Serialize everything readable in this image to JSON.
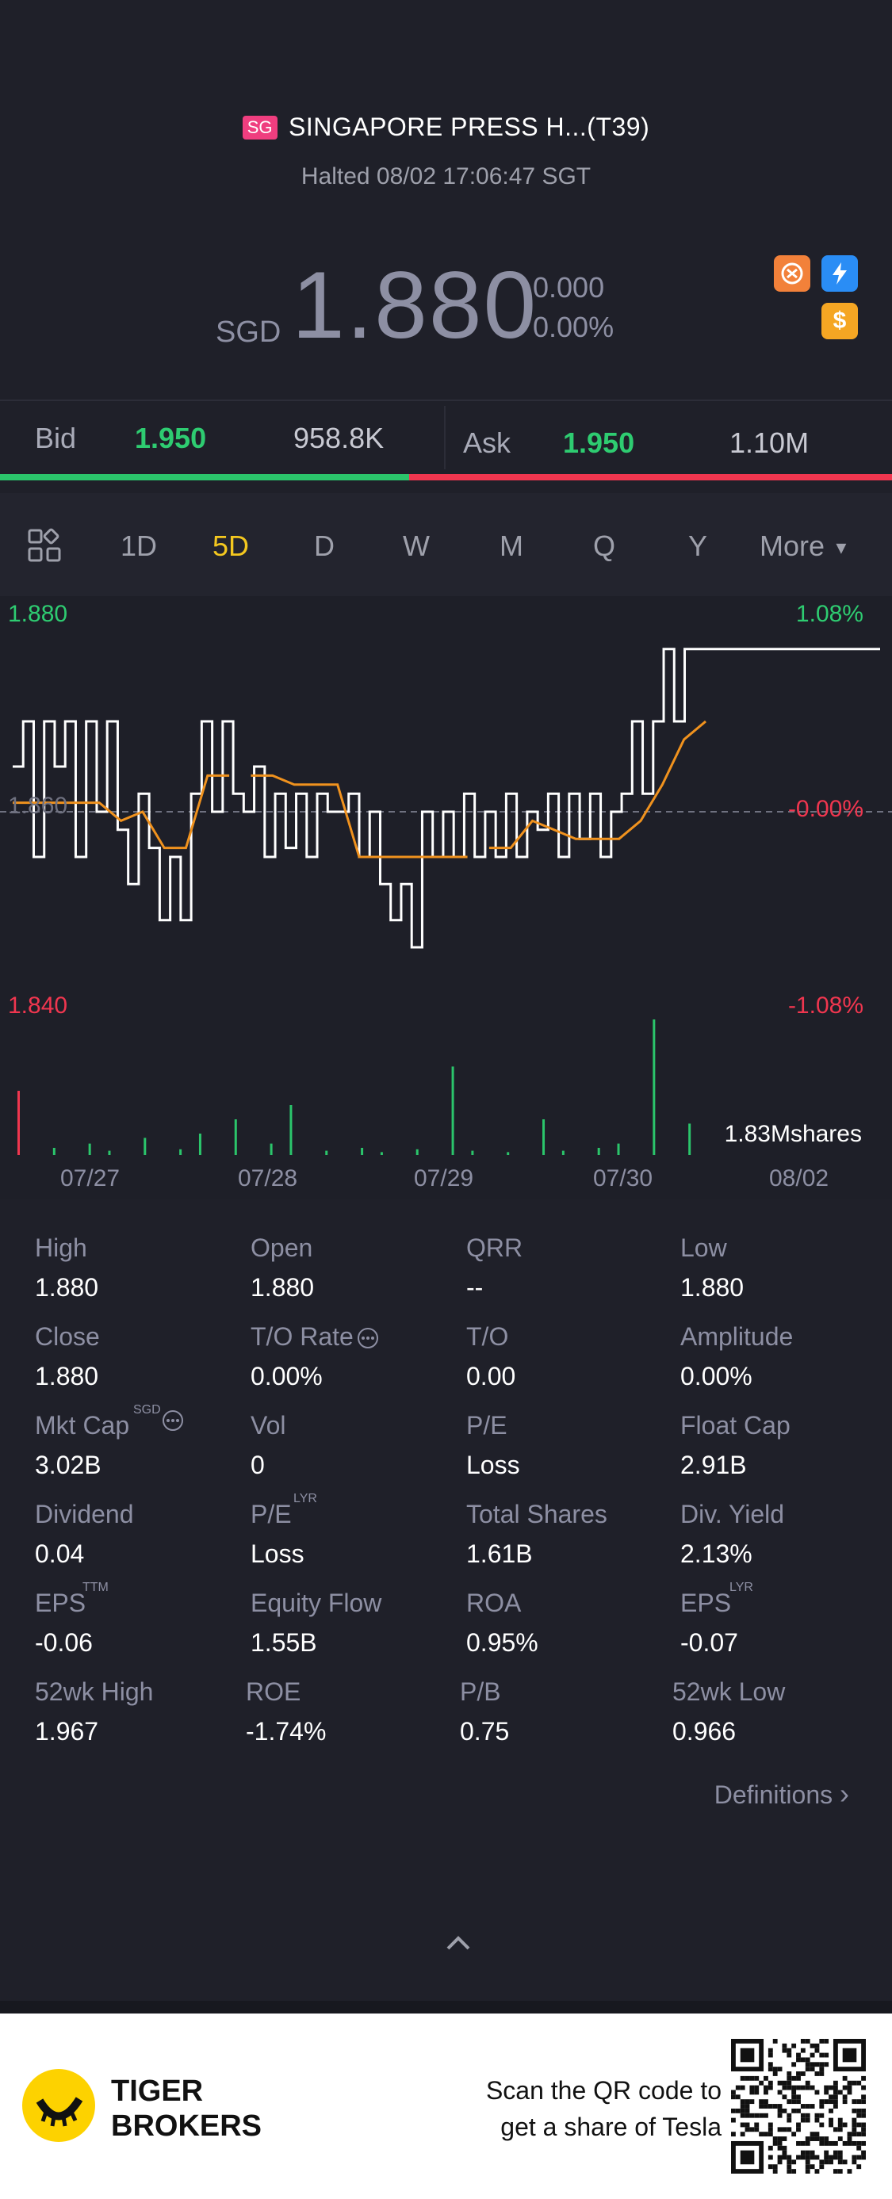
{
  "header": {
    "market_badge": "SG",
    "title": "SINGAPORE PRESS H...(T39)",
    "status": "Halted 08/02 17:06:47 SGT",
    "currency": "SGD",
    "price": "1.880",
    "change": "0.000",
    "change_pct": "0.00%"
  },
  "quote": {
    "bid_label": "Bid",
    "bid_price": "1.950",
    "bid_volume": "958.8K",
    "ask_label": "Ask",
    "ask_price": "1.950",
    "ask_volume": "1.10M",
    "bid_share": 0.46
  },
  "tabs": [
    {
      "label": "1D",
      "active": false
    },
    {
      "label": "5D",
      "active": true
    },
    {
      "label": "D",
      "active": false
    },
    {
      "label": "W",
      "active": false
    },
    {
      "label": "M",
      "active": false
    },
    {
      "label": "Q",
      "active": false
    },
    {
      "label": "Y",
      "active": false
    }
  ],
  "more_label": "More",
  "chart_data": {
    "type": "line",
    "y_high_label": "1.880",
    "y_low_label": "1.840",
    "pct_high_label": "1.08%",
    "pct_mid_label": "-0.00%",
    "pct_low_label": "-1.08%",
    "y_mid_label": "1.860",
    "ylim": [
      1.84,
      1.88
    ],
    "x_ticks": [
      "07/27",
      "07/28",
      "07/29",
      "07/30",
      "08/02"
    ],
    "volume_label": "1.83Mshares",
    "series": [
      {
        "color": "#ffffff",
        "values": [
          1.865,
          1.87,
          1.855,
          1.87,
          1.865,
          1.87,
          1.855,
          1.87,
          1.86,
          1.87,
          1.858,
          1.852,
          1.862,
          1.856,
          1.848,
          1.855,
          1.848,
          1.862,
          1.87,
          1.86,
          1.87,
          1.862,
          1.86,
          1.865,
          1.855,
          1.862,
          1.856,
          1.862,
          1.855,
          1.862,
          1.86,
          1.86,
          1.862,
          1.855,
          1.86,
          1.852,
          1.848,
          1.852,
          1.845,
          1.86,
          1.855,
          1.86,
          1.855,
          1.862,
          1.855,
          1.86,
          1.855,
          1.862,
          1.855,
          1.86,
          1.858,
          1.862,
          1.855,
          1.862,
          1.857,
          1.862,
          1.855,
          1.86,
          1.862,
          1.87,
          1.862,
          1.87,
          1.878,
          1.87,
          1.878,
          1.878,
          1.878
        ]
      },
      {
        "color": "#f0921e",
        "values": [
          1.861,
          1.861,
          1.861,
          1.861,
          1.861,
          1.859,
          1.86,
          1.856,
          1.856,
          1.864,
          1.864,
          1.864,
          1.864,
          1.863,
          1.863,
          1.863,
          1.855,
          1.855,
          1.855,
          1.855,
          1.855,
          1.855,
          1.856,
          1.856,
          1.859,
          1.858,
          1.857,
          1.857,
          1.857,
          1.859,
          1.863,
          1.868,
          1.87
        ]
      }
    ],
    "volume": [
      0.45,
      0.05,
      0.08,
      0.03,
      0.12,
      0.04,
      0.15,
      0.25,
      0.08,
      0.35,
      0.03,
      0.05,
      0.02,
      0.04,
      0.62,
      0.03,
      0.02,
      0.25,
      0.03,
      0.05,
      0.08,
      0.95,
      0.22
    ]
  },
  "stats": [
    {
      "label": "High",
      "value": "1.880"
    },
    {
      "label": "Open",
      "value": "1.880"
    },
    {
      "label": "QRR",
      "value": "--"
    },
    {
      "label": "Low",
      "value": "1.880"
    },
    {
      "label": "Close",
      "value": "1.880"
    },
    {
      "label": "T/O Rate",
      "value": "0.00%"
    },
    {
      "label": "T/O",
      "value": "0.00"
    },
    {
      "label": "Amplitude",
      "value": "0.00%"
    },
    {
      "label": "Mkt Cap",
      "value": "3.02B"
    },
    {
      "label": "Vol",
      "value": "0"
    },
    {
      "label": "P/E",
      "value": "Loss"
    },
    {
      "label": "Float Cap",
      "value": "2.91B"
    },
    {
      "label": "Dividend",
      "value": "0.04"
    },
    {
      "label": "P/E",
      "value": "Loss"
    },
    {
      "label": "Total Shares",
      "value": "1.61B"
    },
    {
      "label": "Div. Yield",
      "value": "2.13%"
    },
    {
      "label": "EPS",
      "value": "-0.06"
    },
    {
      "label": "Equity Flow",
      "value": "1.55B"
    },
    {
      "label": "ROA",
      "value": "0.95%"
    },
    {
      "label": "EPS",
      "value": "-0.07"
    },
    {
      "label": "52wk High",
      "value": "1.967"
    },
    {
      "label": "ROE",
      "value": "-1.74%"
    },
    {
      "label": "P/B",
      "value": "0.75"
    },
    {
      "label": "52wk Low",
      "value": "0.966"
    }
  ],
  "superscripts": {
    "mkt_cap": "SGD",
    "pe_lyr": "LYR",
    "eps_ttm": "TTM",
    "eps_lyr": "LYR"
  },
  "definitions_label": "Definitions",
  "footer": {
    "brand_line1": "TIGER",
    "brand_line2": "BROKERS",
    "scan_line1": "Scan the QR code to",
    "scan_line2": "get a share of Tesla"
  }
}
